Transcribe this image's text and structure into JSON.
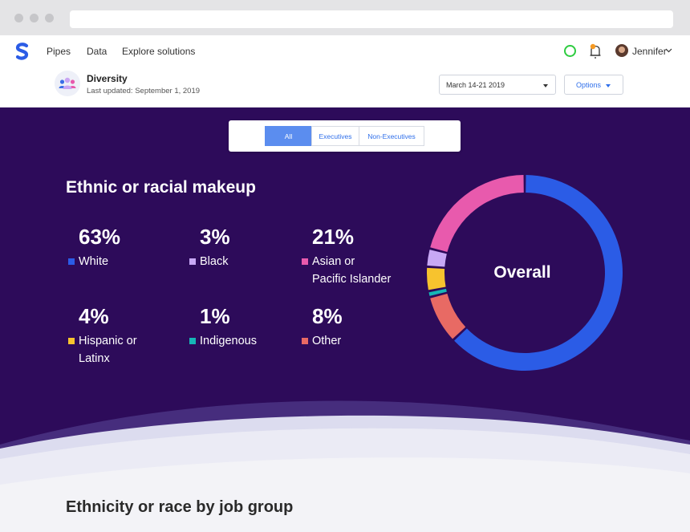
{
  "nav": {
    "links": [
      "Pipes",
      "Data",
      "Explore solutions"
    ],
    "user": "Jennifer"
  },
  "header": {
    "title": "Diversity",
    "subtitle": "Last updated: September 1, 2019",
    "date_range": "March 14-21 2019",
    "options_label": "Options"
  },
  "filters": [
    {
      "label": "All",
      "active": true
    },
    {
      "label": "Executives",
      "active": false
    },
    {
      "label": "Non-Executives",
      "active": false
    }
  ],
  "makeup": {
    "title": "Ethnic or racial makeup",
    "center_label": "Overall",
    "stats": [
      {
        "pct": "63%",
        "label": [
          "White"
        ],
        "color": "#2b5ce6"
      },
      {
        "pct": "3%",
        "label": [
          "Black"
        ],
        "color": "#c8a8f5"
      },
      {
        "pct": "21%",
        "label": [
          "Asian or",
          "Pacific Islander"
        ],
        "color": "#e85aad"
      },
      {
        "pct": "4%",
        "label": [
          "Hispanic or",
          "Latinx"
        ],
        "color": "#f7c32e"
      },
      {
        "pct": "1%",
        "label": [
          "Indigenous"
        ],
        "color": "#16b6b6"
      },
      {
        "pct": "8%",
        "label": [
          "Other"
        ],
        "color": "#e86a64"
      }
    ]
  },
  "colors": {
    "hero_bg": "#2d0b5a",
    "accent": "#2f6fea"
  },
  "chart_data": {
    "type": "pie",
    "categories": [
      "White",
      "Other",
      "Indigenous",
      "Hispanic or Latinx",
      "Black",
      "Asian or Pacific Islander"
    ],
    "values": [
      63,
      8,
      1,
      4,
      3,
      21
    ],
    "colors": [
      "#2b5ce6",
      "#e86a64",
      "#16b6b6",
      "#f7c32e",
      "#c8a8f5",
      "#e85aad"
    ]
  },
  "section2": {
    "title": "Ethnicity or race by job group"
  }
}
